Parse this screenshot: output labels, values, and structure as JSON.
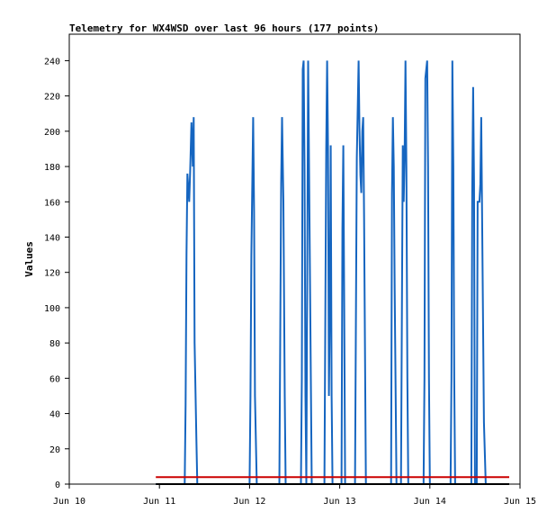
{
  "chart_data": {
    "type": "line",
    "title": "Telemetry for WX4WSD over last 96 hours (177 points)",
    "xlabel": "",
    "ylabel": "Values",
    "x_unit": "days",
    "xlim": [
      10,
      15
    ],
    "ylim": [
      0,
      255
    ],
    "x_ticks": [
      {
        "value": 10,
        "label": "Jun 10"
      },
      {
        "value": 11,
        "label": "Jun 11"
      },
      {
        "value": 12,
        "label": "Jun 12"
      },
      {
        "value": 13,
        "label": "Jun 13"
      },
      {
        "value": 14,
        "label": "Jun 14"
      },
      {
        "value": 15,
        "label": "Jun 15"
      }
    ],
    "y_ticks": [
      0,
      20,
      40,
      60,
      80,
      100,
      120,
      140,
      160,
      180,
      200,
      220,
      240
    ],
    "grid": false,
    "legend": "none",
    "series": [
      {
        "color": "#1565c0",
        "points": [
          [
            10.96,
            0
          ],
          [
            11.28,
            0
          ],
          [
            11.29,
            45
          ],
          [
            11.3,
            130
          ],
          [
            11.31,
            176
          ],
          [
            11.32,
            168
          ],
          [
            11.33,
            160
          ],
          [
            11.34,
            176
          ],
          [
            11.355,
            205
          ],
          [
            11.37,
            180
          ],
          [
            11.38,
            208
          ],
          [
            11.39,
            80
          ],
          [
            11.41,
            25
          ],
          [
            11.42,
            0
          ],
          [
            12.0,
            0
          ],
          [
            12.01,
            50
          ],
          [
            12.02,
            130
          ],
          [
            12.04,
            208
          ],
          [
            12.05,
            155
          ],
          [
            12.06,
            50
          ],
          [
            12.08,
            0
          ],
          [
            12.33,
            0
          ],
          [
            12.35,
            170
          ],
          [
            12.36,
            208
          ],
          [
            12.375,
            160
          ],
          [
            12.39,
            50
          ],
          [
            12.4,
            0
          ],
          [
            12.57,
            0
          ],
          [
            12.58,
            60
          ],
          [
            12.59,
            235
          ],
          [
            12.6,
            240
          ],
          [
            12.61,
            180
          ],
          [
            12.62,
            50
          ],
          [
            12.63,
            0
          ],
          [
            12.65,
            240
          ],
          [
            12.66,
            180
          ],
          [
            12.68,
            60
          ],
          [
            12.69,
            0
          ],
          [
            12.83,
            0
          ],
          [
            12.85,
            190
          ],
          [
            12.86,
            240
          ],
          [
            12.87,
            190
          ],
          [
            12.88,
            50
          ],
          [
            12.89,
            100
          ],
          [
            12.9,
            192
          ],
          [
            12.91,
            50
          ],
          [
            12.92,
            0
          ],
          [
            13.02,
            0
          ],
          [
            13.03,
            145
          ],
          [
            13.04,
            192
          ],
          [
            13.05,
            100
          ],
          [
            13.06,
            0
          ],
          [
            13.17,
            0
          ],
          [
            13.19,
            185
          ],
          [
            13.21,
            240
          ],
          [
            13.22,
            200
          ],
          [
            13.23,
            175
          ],
          [
            13.24,
            165
          ],
          [
            13.25,
            200
          ],
          [
            13.26,
            208
          ],
          [
            13.27,
            150
          ],
          [
            13.29,
            0
          ],
          [
            13.57,
            0
          ],
          [
            13.58,
            165
          ],
          [
            13.59,
            208
          ],
          [
            13.6,
            180
          ],
          [
            13.61,
            110
          ],
          [
            13.63,
            0
          ],
          [
            13.68,
            0
          ],
          [
            13.7,
            192
          ],
          [
            13.71,
            160
          ],
          [
            13.72,
            185
          ],
          [
            13.73,
            240
          ],
          [
            13.74,
            180
          ],
          [
            13.75,
            60
          ],
          [
            13.76,
            0
          ],
          [
            13.93,
            0
          ],
          [
            13.94,
            60
          ],
          [
            13.95,
            230
          ],
          [
            13.97,
            240
          ],
          [
            13.98,
            180
          ],
          [
            13.99,
            60
          ],
          [
            14.0,
            0
          ],
          [
            14.23,
            0
          ],
          [
            14.24,
            60
          ],
          [
            14.25,
            240
          ],
          [
            14.26,
            180
          ],
          [
            14.27,
            60
          ],
          [
            14.28,
            0
          ],
          [
            14.46,
            0
          ],
          [
            14.47,
            165
          ],
          [
            14.48,
            225
          ],
          [
            14.49,
            170
          ],
          [
            14.5,
            0
          ],
          [
            14.52,
            0
          ],
          [
            14.53,
            160
          ],
          [
            14.55,
            160
          ],
          [
            14.56,
            170
          ],
          [
            14.57,
            208
          ],
          [
            14.58,
            150
          ],
          [
            14.6,
            35
          ],
          [
            14.62,
            0
          ]
        ]
      },
      {
        "color": "#cc0000",
        "points": [
          [
            10.96,
            4
          ],
          [
            14.88,
            4
          ]
        ]
      },
      {
        "color": "#000000",
        "points": [
          [
            10.96,
            0
          ],
          [
            14.88,
            0
          ]
        ]
      }
    ]
  }
}
